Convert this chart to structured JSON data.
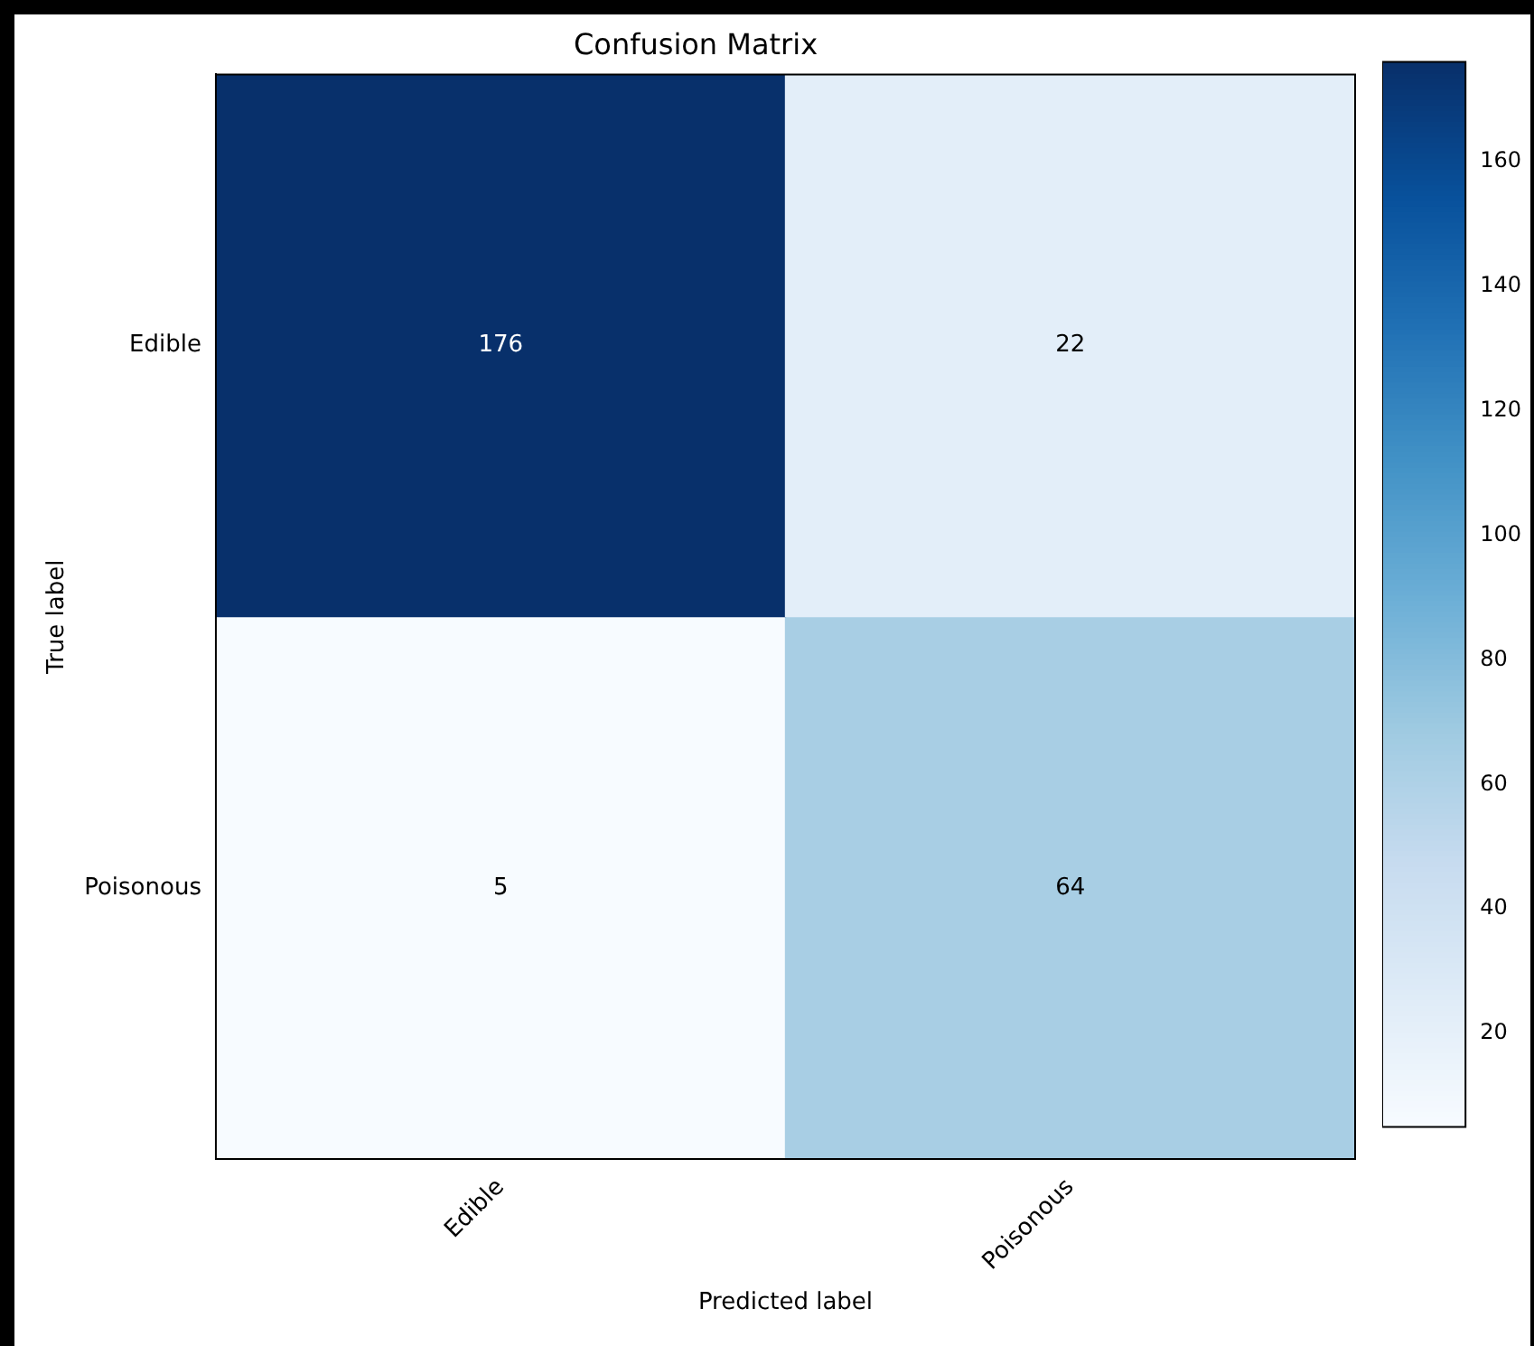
{
  "chart_data": {
    "type": "heatmap",
    "title": "Confusion Matrix",
    "xlabel": "Predicted label",
    "ylabel": "True label",
    "categories": [
      "Edible",
      "Poisonous"
    ],
    "y_categories": [
      "Edible",
      "Poisonous"
    ],
    "cells": [
      [
        176,
        22
      ],
      [
        5,
        64
      ]
    ],
    "clim": [
      5,
      176
    ],
    "cticks": [
      20,
      40,
      60,
      80,
      100,
      120,
      140,
      160
    ],
    "data_labels": true
  }
}
